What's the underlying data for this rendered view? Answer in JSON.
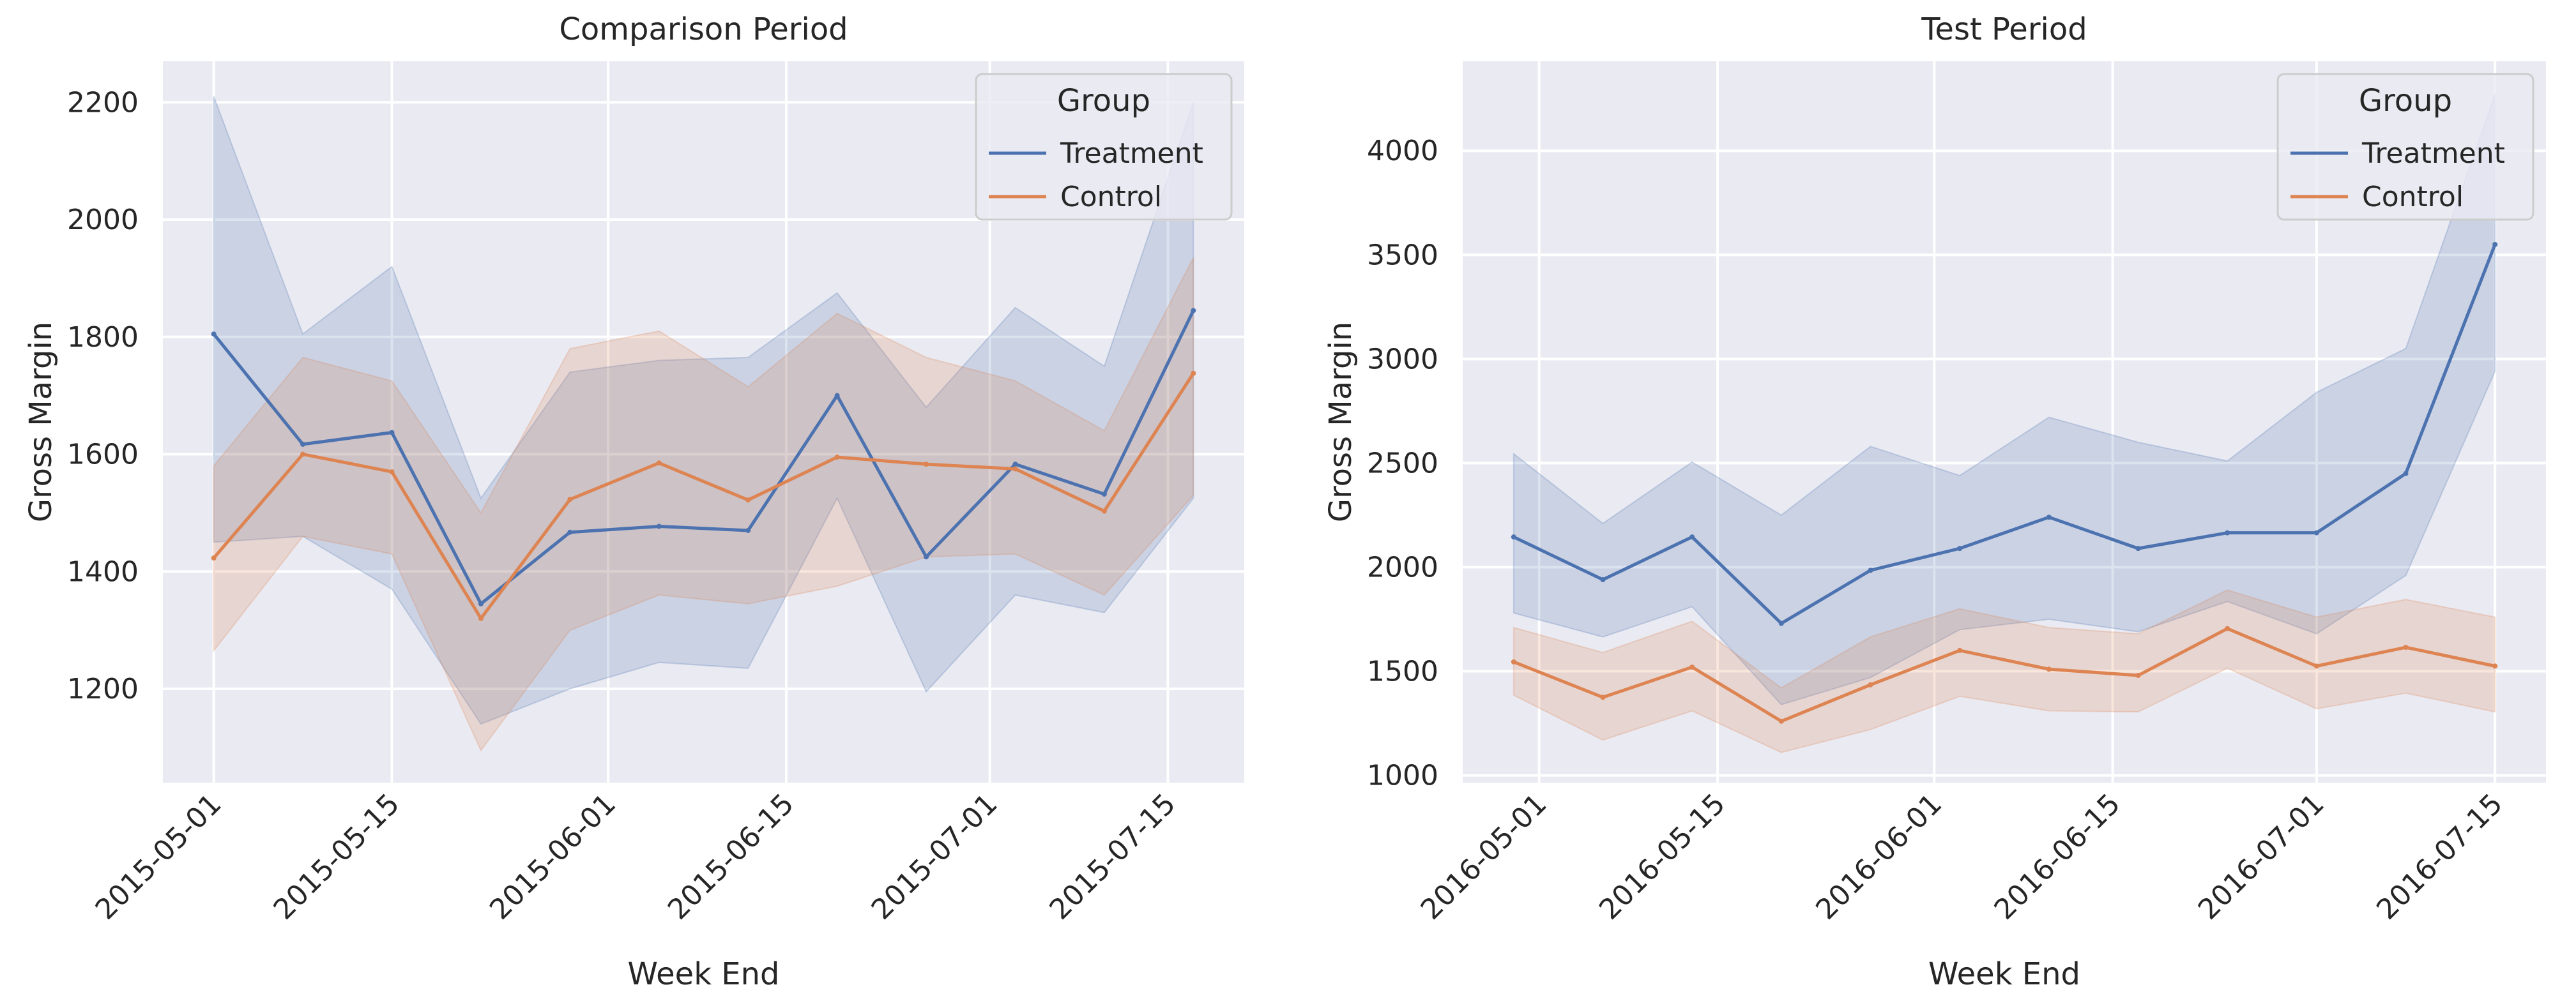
{
  "chart_data": [
    {
      "type": "line",
      "title": "Comparison Period",
      "xlabel": "Week End",
      "ylabel": "Gross Margin",
      "x": [
        "2015-05-01",
        "2015-05-08",
        "2015-05-15",
        "2015-05-22",
        "2015-05-29",
        "2015-06-05",
        "2015-06-12",
        "2015-06-19",
        "2015-06-26",
        "2015-07-03",
        "2015-07-10",
        "2015-07-17"
      ],
      "xlim": [
        "2015-04-27",
        "2015-07-21"
      ],
      "ylim": [
        1040,
        2270
      ],
      "x_ticks": [
        "2015-05-01",
        "2015-05-15",
        "2015-06-01",
        "2015-06-15",
        "2015-07-01",
        "2015-07-15"
      ],
      "y_ticks": [
        1200,
        1400,
        1600,
        1800,
        2000,
        2200
      ],
      "grid": true,
      "legend": {
        "title": "Group",
        "placement": "top-right"
      },
      "series": [
        {
          "name": "Treatment",
          "color": "#4c72b0",
          "values": [
            1805,
            1617,
            1637,
            1345,
            1467,
            1477,
            1470,
            1700,
            1425,
            1583,
            1532,
            1845
          ],
          "lower": [
            1450,
            1460,
            1370,
            1140,
            1200,
            1245,
            1235,
            1525,
            1195,
            1360,
            1330,
            1525
          ],
          "upper": [
            2210,
            1805,
            1920,
            1525,
            1740,
            1760,
            1765,
            1875,
            1680,
            1850,
            1750,
            2200
          ]
        },
        {
          "name": "Control",
          "color": "#dd8452",
          "values": [
            1423,
            1600,
            1570,
            1320,
            1523,
            1585,
            1522,
            1595,
            1583,
            1575,
            1503,
            1738
          ],
          "lower": [
            1265,
            1460,
            1430,
            1095,
            1300,
            1360,
            1345,
            1375,
            1425,
            1430,
            1360,
            1530
          ],
          "upper": [
            1580,
            1765,
            1725,
            1500,
            1780,
            1810,
            1715,
            1840,
            1765,
            1725,
            1640,
            1935
          ]
        }
      ]
    },
    {
      "type": "line",
      "title": "Test Period",
      "xlabel": "Week End",
      "ylabel": "Gross Margin",
      "x": [
        "2016-04-29",
        "2016-05-06",
        "2016-05-13",
        "2016-05-20",
        "2016-05-27",
        "2016-06-03",
        "2016-06-10",
        "2016-06-17",
        "2016-06-24",
        "2016-07-01",
        "2016-07-08",
        "2016-07-15"
      ],
      "xlim": [
        "2016-04-25",
        "2016-07-19"
      ],
      "ylim": [
        965,
        4430
      ],
      "x_ticks": [
        "2016-05-01",
        "2016-05-15",
        "2016-06-01",
        "2016-06-15",
        "2016-07-01",
        "2016-07-15"
      ],
      "y_ticks": [
        1000,
        1500,
        2000,
        2500,
        3000,
        3500,
        4000
      ],
      "grid": true,
      "legend": {
        "title": "Group",
        "placement": "top-right"
      },
      "series": [
        {
          "name": "Treatment",
          "color": "#4c72b0",
          "values": [
            2145,
            1940,
            2145,
            1730,
            1985,
            2090,
            2240,
            2090,
            2165,
            2165,
            2450,
            3550
          ],
          "lower": [
            1780,
            1665,
            1810,
            1340,
            1470,
            1700,
            1750,
            1690,
            1835,
            1680,
            1960,
            2940
          ],
          "upper": [
            2545,
            2210,
            2505,
            2250,
            2580,
            2440,
            2720,
            2600,
            2510,
            2840,
            3050,
            4270
          ]
        },
        {
          "name": "Control",
          "color": "#dd8452",
          "values": [
            1545,
            1375,
            1520,
            1260,
            1435,
            1600,
            1510,
            1480,
            1705,
            1525,
            1615,
            1525
          ],
          "lower": [
            1385,
            1170,
            1310,
            1110,
            1220,
            1380,
            1310,
            1305,
            1515,
            1320,
            1395,
            1305
          ],
          "upper": [
            1710,
            1590,
            1740,
            1420,
            1665,
            1800,
            1710,
            1680,
            1890,
            1760,
            1845,
            1760
          ]
        }
      ]
    }
  ]
}
